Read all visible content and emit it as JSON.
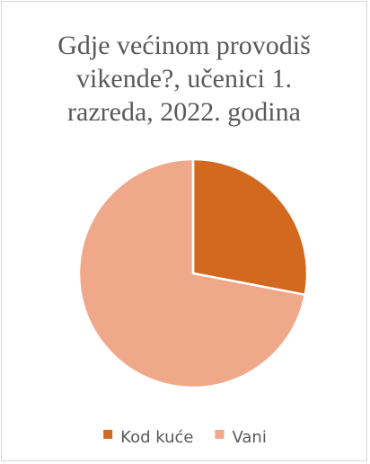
{
  "chart_data": {
    "type": "pie",
    "title_lines": [
      "Gdje većinom provodiš",
      "vikende?, učenici 1.",
      "razreda, 2022. godina"
    ],
    "categories": [
      "Kod kuće",
      "Vani"
    ],
    "values": [
      28,
      72
    ],
    "colors": [
      "#d2691e",
      "#f0a88a"
    ],
    "legend_position": "bottom",
    "start_angle_deg": 0,
    "direction": "clockwise"
  }
}
